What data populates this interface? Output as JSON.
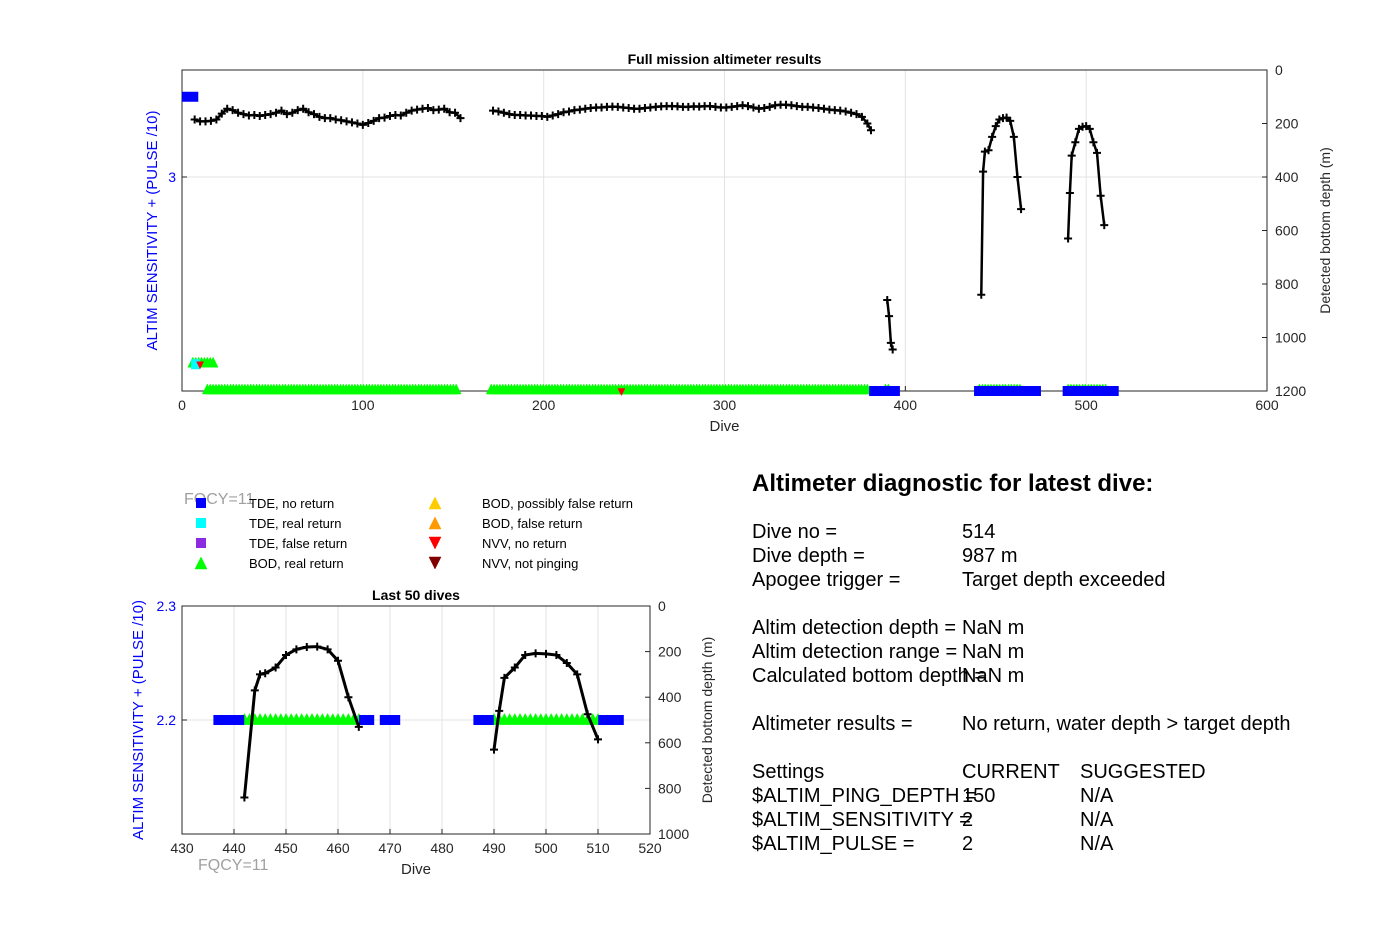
{
  "colors": {
    "tde_no_return": "#0000ff",
    "tde_real_return": "#00ffff",
    "tde_false_return": "#8a2be2",
    "bod_real_return": "#00ff00",
    "bod_possibly_false": "#ffcc00",
    "bod_false_return": "#ff9900",
    "nvv_no_return": "#ff0000",
    "nvv_not_pinging": "#800000",
    "depth_line": "#000000",
    "left_axis": "#0000ff",
    "fqcy_text": "#a0a0a0"
  },
  "legend": {
    "items": [
      {
        "label": "TDE, no return",
        "marker": "square",
        "color": "#0000ff"
      },
      {
        "label": "TDE, real return",
        "marker": "square",
        "color": "#00ffff"
      },
      {
        "label": "TDE, false return",
        "marker": "square",
        "color": "#8a2be2"
      },
      {
        "label": "BOD, real return",
        "marker": "triangle-up",
        "color": "#00ff00"
      },
      {
        "label": "BOD, possibly false return",
        "marker": "triangle-up",
        "color": "#ffcc00"
      },
      {
        "label": "BOD, false return",
        "marker": "triangle-up",
        "color": "#ff9900"
      },
      {
        "label": "NVV, no return",
        "marker": "triangle-down",
        "color": "#ff0000"
      },
      {
        "label": "NVV, not pinging",
        "marker": "triangle-down",
        "color": "#800000"
      }
    ]
  },
  "fqcy_label": "FQCY=11",
  "fqcy_label_bottom": "FQCY=11",
  "diagnostic": {
    "title": "Altimeter diagnostic for latest dive:",
    "rows": [
      {
        "label": "Dive no =",
        "value": "514"
      },
      {
        "label": "Dive depth =",
        "value": "987 m"
      },
      {
        "label": "Apogee trigger =",
        "value": "Target depth exceeded"
      },
      {
        "label": "Altim detection depth =",
        "value": "NaN m"
      },
      {
        "label": "Altim detection range =",
        "value": "NaN m"
      },
      {
        "label": "Calculated bottom depth =",
        "value": "NaN m"
      },
      {
        "label": "Altimeter results =",
        "value": "No return, water depth > target depth"
      }
    ],
    "settings_header": {
      "label": "Settings",
      "current": "CURRENT",
      "suggested": "SUGGESTED"
    },
    "settings": [
      {
        "label": "$ALTIM_PING_DEPTH =",
        "current": "150",
        "suggested": "N/A"
      },
      {
        "label": "$ALTIM_SENSITIVITY =",
        "current": "2",
        "suggested": "N/A"
      },
      {
        "label": "$ALTIM_PULSE =",
        "current": "2",
        "suggested": "N/A"
      }
    ]
  },
  "chart_data": [
    {
      "type": "scatter",
      "title": "Full mission altimeter results",
      "xlabel": "Dive",
      "ylabel": "ALTIM SENSITIVITY + (PULSE /10)",
      "y2label": "Detected bottom depth (m)",
      "xlim": [
        0,
        600
      ],
      "ylim_left": [
        2.2,
        3.4
      ],
      "ylim_right": [
        1200,
        0
      ],
      "xticks": [
        "0",
        "100",
        "200",
        "300",
        "400",
        "500",
        "600"
      ],
      "yticks_left": [
        "3"
      ],
      "yticks_right": [
        "0",
        "200",
        "400",
        "600",
        "800",
        "1000",
        "1200"
      ],
      "grid": true,
      "tde_no_return_blocks": [
        {
          "x0": 0,
          "x1": 9,
          "y": 3.3
        },
        {
          "x0": 380,
          "x1": 397,
          "y": 2.2
        },
        {
          "x0": 438,
          "x1": 475,
          "y": 2.2
        },
        {
          "x0": 487,
          "x1": 518,
          "y": 2.2
        }
      ],
      "tde_real_return_blocks": [
        {
          "x0": 5,
          "x1": 10,
          "y": 2.3
        }
      ],
      "bod_real_return_segments": [
        {
          "x0": 6,
          "x1": 18,
          "y": 2.3
        },
        {
          "x0": 14,
          "x1": 152,
          "y": 2.2
        },
        {
          "x0": 171,
          "x1": 380,
          "y": 2.2
        },
        {
          "x0": 389,
          "x1": 392,
          "y": 2.2
        },
        {
          "x0": 441,
          "x1": 465,
          "y": 2.2
        },
        {
          "x0": 490,
          "x1": 511,
          "y": 2.2
        }
      ],
      "nvv_no_return_points": [
        {
          "x": 10,
          "y": 2.3
        },
        {
          "x": 243,
          "y": 2.2
        }
      ],
      "depth_series": [
        {
          "x": [
            7,
            10,
            13,
            16,
            19,
            22,
            25,
            28,
            31,
            34,
            37,
            40,
            43,
            46,
            49,
            52,
            55,
            58,
            61,
            64,
            67,
            70,
            73,
            76,
            79,
            82,
            85,
            88,
            91,
            94,
            97,
            100,
            103,
            106,
            109,
            112,
            115,
            118,
            121,
            124,
            127,
            130,
            133,
            136,
            139,
            142,
            145,
            148,
            151,
            154
          ],
          "y": [
            185,
            192,
            192,
            190,
            185,
            163,
            145,
            150,
            160,
            165,
            170,
            168,
            172,
            168,
            165,
            160,
            152,
            165,
            160,
            150,
            145,
            158,
            165,
            175,
            180,
            180,
            185,
            188,
            192,
            196,
            200,
            205,
            198,
            190,
            180,
            178,
            172,
            168,
            170,
            160,
            152,
            148,
            145,
            142,
            150,
            148,
            145,
            158,
            160,
            180
          ]
        },
        {
          "x": [
            172,
            175,
            178,
            181,
            184,
            187,
            190,
            193,
            196,
            199,
            202,
            205,
            208,
            211,
            214,
            217,
            220,
            223,
            226,
            229,
            232,
            235,
            238,
            241,
            244,
            247,
            250,
            253,
            256,
            259,
            262,
            265,
            268,
            271,
            274,
            277,
            280,
            283,
            286,
            289,
            292,
            295,
            298,
            301,
            304,
            307,
            310,
            313,
            316,
            319,
            322,
            325,
            328,
            331,
            334,
            337,
            340,
            343,
            346,
            349,
            352,
            355,
            358,
            361,
            364,
            367,
            370,
            373,
            376,
            379,
            381
          ],
          "y": [
            152,
            155,
            160,
            165,
            168,
            168,
            170,
            170,
            172,
            172,
            175,
            170,
            165,
            158,
            155,
            150,
            148,
            145,
            142,
            140,
            140,
            138,
            137,
            138,
            140,
            142,
            145,
            145,
            142,
            140,
            138,
            136,
            135,
            135,
            136,
            138,
            138,
            136,
            137,
            135,
            135,
            138,
            140,
            140,
            138,
            135,
            132,
            135,
            140,
            145,
            142,
            138,
            132,
            130,
            130,
            132,
            135,
            138,
            138,
            140,
            142,
            145,
            148,
            150,
            152,
            155,
            160,
            165,
            175,
            200,
            225
          ]
        },
        {
          "x": [
            390,
            391,
            392,
            393
          ],
          "y": [
            860,
            920,
            1020,
            1045
          ]
        },
        {
          "x": [
            442,
            443,
            444,
            446,
            448,
            450,
            452,
            454,
            456,
            458,
            460,
            462,
            464
          ],
          "y": [
            840,
            380,
            305,
            300,
            250,
            210,
            185,
            180,
            178,
            190,
            250,
            400,
            520
          ]
        },
        {
          "x": [
            490,
            491,
            492,
            494,
            496,
            498,
            500,
            502,
            504,
            506,
            508,
            510
          ],
          "y": [
            630,
            460,
            320,
            270,
            220,
            212,
            210,
            220,
            270,
            310,
            470,
            580
          ]
        }
      ]
    },
    {
      "type": "scatter",
      "title": "Last 50 dives",
      "xlabel": "Dive",
      "ylabel": "ALTIM SENSITIVITY + (PULSE /10)",
      "y2label": "Detected bottom depth (m)",
      "xlim": [
        430,
        520
      ],
      "ylim_left": [
        2.1,
        2.3
      ],
      "ylim_right": [
        1000,
        0
      ],
      "xticks": [
        "430",
        "440",
        "450",
        "460",
        "470",
        "480",
        "490",
        "500",
        "510",
        "520"
      ],
      "yticks_left": [
        "2.3",
        "2.2"
      ],
      "yticks_right": [
        "0",
        "200",
        "400",
        "600",
        "800",
        "1000"
      ],
      "grid": true,
      "tde_no_return_points": [
        437,
        438,
        439,
        440,
        441,
        465,
        466,
        469,
        470,
        471,
        487,
        488,
        489,
        511,
        512,
        513,
        514
      ],
      "bod_real_return_points": [
        442,
        443,
        444,
        445,
        446,
        447,
        448,
        449,
        450,
        451,
        452,
        453,
        454,
        455,
        456,
        457,
        458,
        459,
        460,
        461,
        462,
        463,
        464,
        490,
        491,
        492,
        493,
        494,
        495,
        496,
        497,
        498,
        499,
        500,
        501,
        502,
        503,
        504,
        505,
        506,
        507,
        508,
        509,
        510
      ],
      "depth_series": [
        {
          "x": [
            442,
            444,
            445,
            446,
            448,
            450,
            452,
            454,
            456,
            458,
            460,
            462,
            464
          ],
          "y": [
            840,
            370,
            300,
            295,
            270,
            215,
            190,
            180,
            178,
            190,
            240,
            400,
            530
          ]
        },
        {
          "x": [
            490,
            491,
            492,
            494,
            496,
            498,
            500,
            502,
            504,
            506,
            508,
            510
          ],
          "y": [
            630,
            460,
            315,
            270,
            215,
            208,
            210,
            215,
            250,
            300,
            475,
            585
          ]
        }
      ]
    }
  ]
}
